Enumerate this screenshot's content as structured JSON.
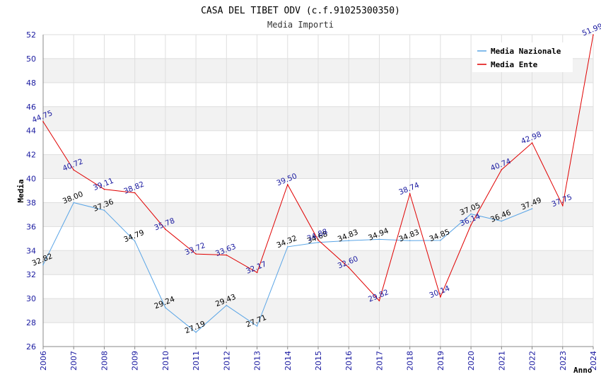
{
  "chart_data": {
    "type": "line",
    "title": "CASA DEL TIBET ODV (c.f.91025300350)",
    "subtitle": "Media Importi",
    "xlabel": "Anno",
    "ylabel": "Media",
    "x": [
      "2006",
      "2007",
      "2008",
      "2009",
      "2010",
      "2011",
      "2012",
      "2013",
      "2014",
      "2015",
      "2016",
      "2017",
      "2018",
      "2019",
      "2020",
      "2021",
      "2022",
      "2023",
      "2024"
    ],
    "ylim": [
      26,
      52
    ],
    "yticks": [
      26,
      28,
      30,
      32,
      34,
      36,
      38,
      40,
      42,
      44,
      46,
      48,
      50,
      52
    ],
    "grid": true,
    "legend_position": "top-right",
    "series": [
      {
        "name": "Media Nazionale",
        "color": "#5aa5e6",
        "label_color": "#000000",
        "values": [
          32.82,
          38.0,
          37.36,
          34.79,
          29.24,
          27.19,
          29.43,
          27.71,
          34.32,
          34.68,
          34.83,
          34.94,
          34.83,
          34.85,
          37.05,
          36.46,
          37.49,
          null,
          null
        ],
        "labels": [
          "32.82",
          "38.00",
          "37.36",
          "34.79",
          "29.24",
          "27.19",
          "29.43",
          "27.71",
          "34.32",
          "34.68",
          "34.83",
          "34.94",
          "34.83",
          "34.85",
          "37.05",
          "36.46",
          "37.49",
          null,
          null
        ]
      },
      {
        "name": "Media Ente",
        "color": "#e00000",
        "label_color": "#1a1aa0",
        "values": [
          44.75,
          40.72,
          39.11,
          38.82,
          35.78,
          33.72,
          33.63,
          32.17,
          39.5,
          34.88,
          32.6,
          29.82,
          38.74,
          30.14,
          36.14,
          40.74,
          42.98,
          37.75,
          51.99
        ],
        "labels": [
          "44.75",
          "40.72",
          "39.11",
          "38.82",
          "35.78",
          "33.72",
          "33.63",
          "32.17",
          "39.50",
          "34.88",
          "32.60",
          "29.82",
          "38.74",
          "30.14",
          "36.14",
          "40.74",
          "42.98",
          "37.75",
          "51.99"
        ]
      }
    ]
  }
}
